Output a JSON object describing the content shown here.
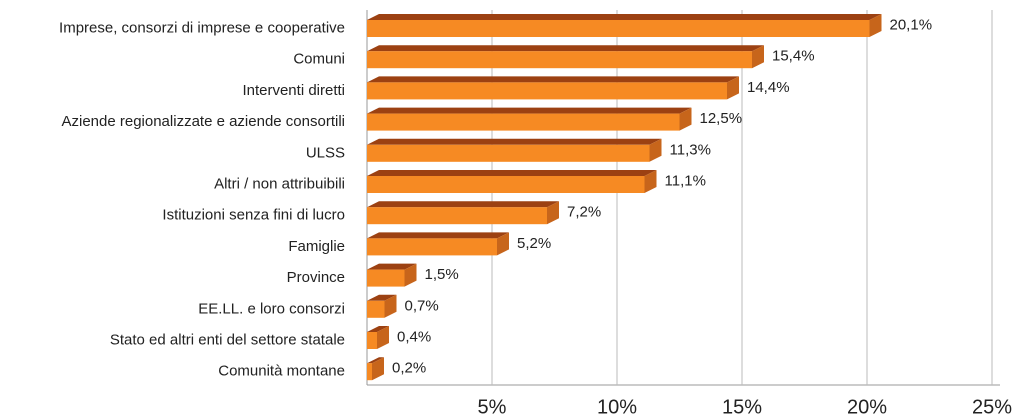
{
  "chart_data": {
    "type": "bar",
    "orientation": "horizontal",
    "categories": [
      "Imprese, consorzi di imprese e cooperative",
      "Comuni",
      "Interventi diretti",
      "Aziende regionalizzate e aziende consortili",
      "ULSS",
      "Altri / non attribuibili",
      "Istituzioni senza fini di lucro",
      "Famiglie",
      "Province",
      "EE.LL. e loro consorzi",
      "Stato ed altri enti del settore statale",
      "Comunità montane"
    ],
    "values": [
      20.1,
      15.4,
      14.4,
      12.5,
      11.3,
      11.1,
      7.2,
      5.2,
      1.5,
      0.7,
      0.4,
      0.2
    ],
    "value_labels": [
      "20,1%",
      "15,4%",
      "14,4%",
      "12,5%",
      "11,3%",
      "11,1%",
      "7,2%",
      "5,2%",
      "1,5%",
      "0,7%",
      "0,4%",
      "0,2%"
    ],
    "color": "#f68a23",
    "xlim": [
      0,
      25
    ],
    "xticks": [
      {
        "value": 5,
        "label": "5%"
      },
      {
        "value": 10,
        "label": "10%"
      },
      {
        "value": 15,
        "label": "15%"
      },
      {
        "value": 20,
        "label": "20%"
      },
      {
        "value": 25,
        "label": "25%"
      }
    ],
    "grid": true
  }
}
